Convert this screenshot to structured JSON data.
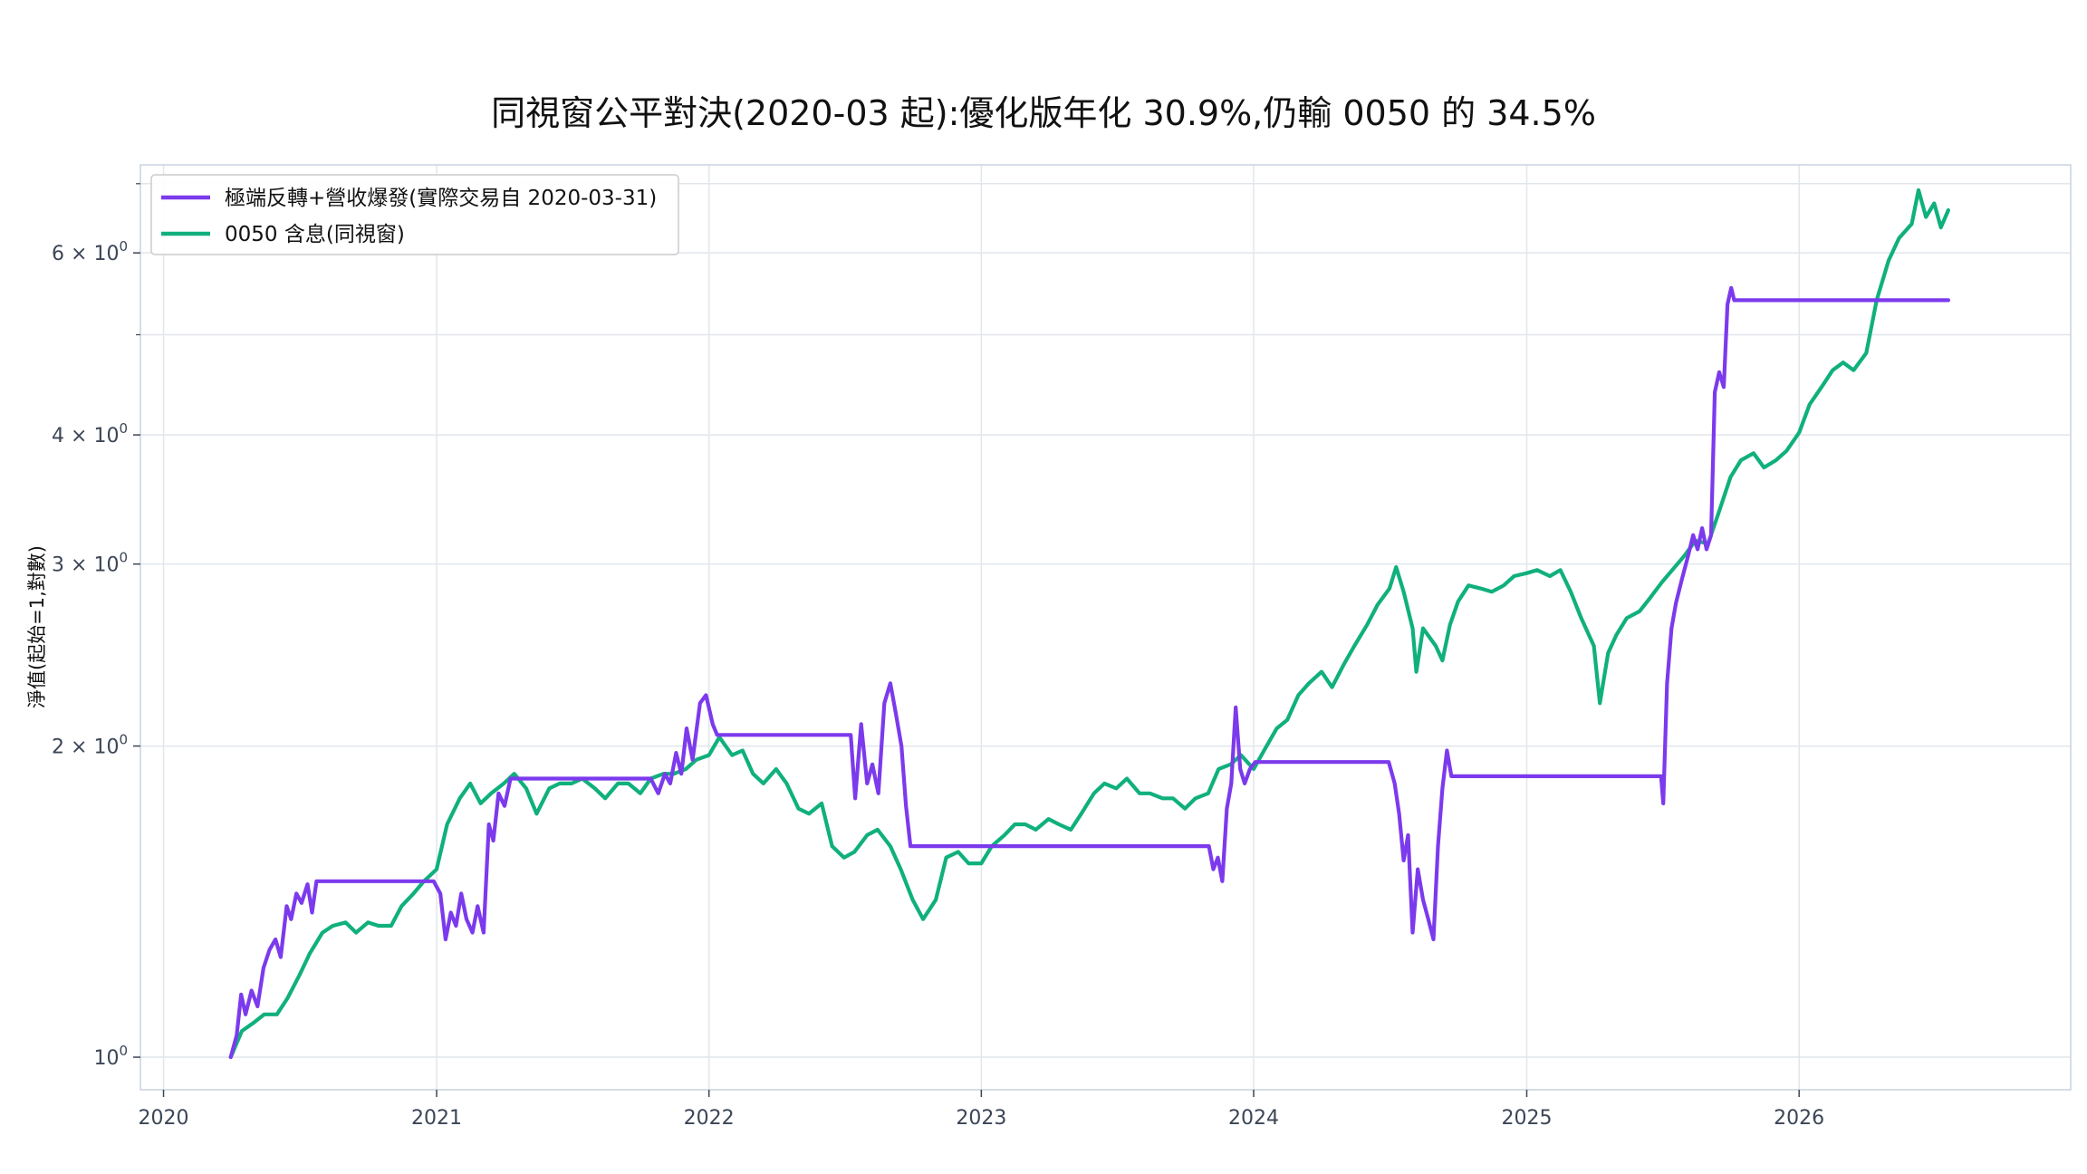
{
  "chart_data": {
    "type": "line",
    "title": "同視窗公平對決(2020-03 起):優化版年化 30.9%,仍輸 0050 的 34.5%",
    "ylabel": "淨值(起始=1,對數)",
    "xlabel": "",
    "yscale": "log",
    "xlim": [
      "2019-12-01",
      "2026-12-31"
    ],
    "ylim": [
      0.93,
      7.3
    ],
    "grid": true,
    "legend": "top-left",
    "x_ticks": [
      {
        "date": "2020-01-01",
        "label": "2020"
      },
      {
        "date": "2021-01-01",
        "label": "2021"
      },
      {
        "date": "2022-01-01",
        "label": "2022"
      },
      {
        "date": "2023-01-01",
        "label": "2023"
      },
      {
        "date": "2024-01-01",
        "label": "2024"
      },
      {
        "date": "2025-01-01",
        "label": "2025"
      },
      {
        "date": "2026-01-01",
        "label": "2026"
      }
    ],
    "y_ticks": [
      {
        "value": 1,
        "base": "10",
        "exp": "0",
        "mult": ""
      },
      {
        "value": 2,
        "base": "10",
        "exp": "0",
        "mult": "2 × "
      },
      {
        "value": 3,
        "base": "10",
        "exp": "0",
        "mult": "3 × "
      },
      {
        "value": 4,
        "base": "10",
        "exp": "0",
        "mult": "4 × "
      },
      {
        "value": 6,
        "base": "10",
        "exp": "0",
        "mult": "6 × "
      }
    ],
    "y_minor_ticks": [
      5,
      7
    ],
    "series": [
      {
        "name": "極端反轉+營收爆發(實際交易自 2020-03-31)",
        "color": "#7c3aed",
        "points": [
          [
            "2020-03-31",
            1.0
          ],
          [
            "2020-04-08",
            1.05
          ],
          [
            "2020-04-14",
            1.15
          ],
          [
            "2020-04-20",
            1.1
          ],
          [
            "2020-04-28",
            1.16
          ],
          [
            "2020-05-06",
            1.12
          ],
          [
            "2020-05-14",
            1.22
          ],
          [
            "2020-05-22",
            1.27
          ],
          [
            "2020-05-30",
            1.3
          ],
          [
            "2020-06-06",
            1.25
          ],
          [
            "2020-06-14",
            1.4
          ],
          [
            "2020-06-20",
            1.36
          ],
          [
            "2020-06-27",
            1.44
          ],
          [
            "2020-07-04",
            1.41
          ],
          [
            "2020-07-12",
            1.47
          ],
          [
            "2020-07-18",
            1.38
          ],
          [
            "2020-07-24",
            1.48
          ],
          [
            "2020-12-28",
            1.48
          ],
          [
            "2021-01-06",
            1.44
          ],
          [
            "2021-01-13",
            1.3
          ],
          [
            "2021-01-20",
            1.38
          ],
          [
            "2021-01-27",
            1.34
          ],
          [
            "2021-02-03",
            1.44
          ],
          [
            "2021-02-10",
            1.36
          ],
          [
            "2021-02-18",
            1.32
          ],
          [
            "2021-02-25",
            1.4
          ],
          [
            "2021-03-05",
            1.32
          ],
          [
            "2021-03-12",
            1.68
          ],
          [
            "2021-03-18",
            1.62
          ],
          [
            "2021-03-25",
            1.8
          ],
          [
            "2021-04-02",
            1.75
          ],
          [
            "2021-04-10",
            1.86
          ],
          [
            "2021-10-15",
            1.86
          ],
          [
            "2021-10-25",
            1.8
          ],
          [
            "2021-11-03",
            1.88
          ],
          [
            "2021-11-10",
            1.84
          ],
          [
            "2021-11-18",
            1.97
          ],
          [
            "2021-11-25",
            1.88
          ],
          [
            "2021-12-02",
            2.08
          ],
          [
            "2021-12-10",
            1.94
          ],
          [
            "2021-12-20",
            2.2
          ],
          [
            "2021-12-28",
            2.24
          ],
          [
            "2022-01-06",
            2.1
          ],
          [
            "2022-01-12",
            2.05
          ],
          [
            "2022-07-10",
            2.05
          ],
          [
            "2022-07-16",
            1.78
          ],
          [
            "2022-07-24",
            2.1
          ],
          [
            "2022-08-01",
            1.84
          ],
          [
            "2022-08-08",
            1.92
          ],
          [
            "2022-08-16",
            1.8
          ],
          [
            "2022-08-24",
            2.2
          ],
          [
            "2022-09-01",
            2.3
          ],
          [
            "2022-09-08",
            2.16
          ],
          [
            "2022-09-16",
            2.0
          ],
          [
            "2022-09-22",
            1.75
          ],
          [
            "2022-09-28",
            1.6
          ],
          [
            "2023-11-02",
            1.6
          ],
          [
            "2023-11-08",
            1.52
          ],
          [
            "2023-11-14",
            1.56
          ],
          [
            "2023-11-20",
            1.48
          ],
          [
            "2023-11-26",
            1.74
          ],
          [
            "2023-12-02",
            1.84
          ],
          [
            "2023-12-08",
            2.18
          ],
          [
            "2023-12-14",
            1.9
          ],
          [
            "2023-12-20",
            1.84
          ],
          [
            "2023-12-27",
            1.9
          ],
          [
            "2024-01-03",
            1.93
          ],
          [
            "2024-06-30",
            1.93
          ],
          [
            "2024-07-08",
            1.84
          ],
          [
            "2024-07-14",
            1.72
          ],
          [
            "2024-07-20",
            1.55
          ],
          [
            "2024-07-26",
            1.64
          ],
          [
            "2024-08-01",
            1.32
          ],
          [
            "2024-08-08",
            1.52
          ],
          [
            "2024-08-15",
            1.42
          ],
          [
            "2024-08-22",
            1.36
          ],
          [
            "2024-08-29",
            1.3
          ],
          [
            "2024-09-04",
            1.6
          ],
          [
            "2024-09-10",
            1.82
          ],
          [
            "2024-09-16",
            1.98
          ],
          [
            "2024-09-22",
            1.87
          ],
          [
            "2025-06-30",
            1.87
          ],
          [
            "2025-07-03",
            1.76
          ],
          [
            "2025-07-08",
            2.3
          ],
          [
            "2025-07-14",
            2.6
          ],
          [
            "2025-07-20",
            2.75
          ],
          [
            "2025-07-28",
            2.9
          ],
          [
            "2025-08-05",
            3.05
          ],
          [
            "2025-08-12",
            3.2
          ],
          [
            "2025-08-18",
            3.1
          ],
          [
            "2025-08-24",
            3.25
          ],
          [
            "2025-08-30",
            3.1
          ],
          [
            "2025-09-05",
            3.2
          ],
          [
            "2025-09-10",
            4.4
          ],
          [
            "2025-09-16",
            4.6
          ],
          [
            "2025-09-22",
            4.45
          ],
          [
            "2025-09-27",
            5.35
          ],
          [
            "2025-10-02",
            5.55
          ],
          [
            "2025-10-06",
            5.4
          ],
          [
            "2026-07-20",
            5.4
          ]
        ]
      },
      {
        "name": "0050 含息(同視窗)",
        "color": "#10b07d",
        "points": [
          [
            "2020-03-31",
            1.0
          ],
          [
            "2020-04-15",
            1.06
          ],
          [
            "2020-05-01",
            1.08
          ],
          [
            "2020-05-15",
            1.1
          ],
          [
            "2020-06-01",
            1.1
          ],
          [
            "2020-06-15",
            1.14
          ],
          [
            "2020-07-01",
            1.2
          ],
          [
            "2020-07-15",
            1.26
          ],
          [
            "2020-08-01",
            1.32
          ],
          [
            "2020-08-15",
            1.34
          ],
          [
            "2020-09-01",
            1.35
          ],
          [
            "2020-09-15",
            1.32
          ],
          [
            "2020-10-01",
            1.35
          ],
          [
            "2020-10-15",
            1.34
          ],
          [
            "2020-11-01",
            1.34
          ],
          [
            "2020-11-15",
            1.4
          ],
          [
            "2020-12-01",
            1.44
          ],
          [
            "2020-12-15",
            1.48
          ],
          [
            "2021-01-01",
            1.52
          ],
          [
            "2021-01-15",
            1.68
          ],
          [
            "2021-02-01",
            1.78
          ],
          [
            "2021-02-15",
            1.84
          ],
          [
            "2021-03-01",
            1.76
          ],
          [
            "2021-03-15",
            1.8
          ],
          [
            "2021-04-01",
            1.84
          ],
          [
            "2021-04-15",
            1.88
          ],
          [
            "2021-05-01",
            1.82
          ],
          [
            "2021-05-15",
            1.72
          ],
          [
            "2021-06-01",
            1.82
          ],
          [
            "2021-06-15",
            1.84
          ],
          [
            "2021-07-01",
            1.84
          ],
          [
            "2021-07-15",
            1.86
          ],
          [
            "2021-08-01",
            1.82
          ],
          [
            "2021-08-15",
            1.78
          ],
          [
            "2021-09-01",
            1.84
          ],
          [
            "2021-09-15",
            1.84
          ],
          [
            "2021-10-01",
            1.8
          ],
          [
            "2021-10-15",
            1.86
          ],
          [
            "2021-11-01",
            1.88
          ],
          [
            "2021-11-15",
            1.88
          ],
          [
            "2021-12-01",
            1.9
          ],
          [
            "2021-12-15",
            1.94
          ],
          [
            "2022-01-01",
            1.96
          ],
          [
            "2022-01-15",
            2.04
          ],
          [
            "2022-02-01",
            1.96
          ],
          [
            "2022-02-15",
            1.98
          ],
          [
            "2022-03-01",
            1.88
          ],
          [
            "2022-03-15",
            1.84
          ],
          [
            "2022-04-01",
            1.9
          ],
          [
            "2022-04-15",
            1.84
          ],
          [
            "2022-05-01",
            1.74
          ],
          [
            "2022-05-15",
            1.72
          ],
          [
            "2022-06-01",
            1.76
          ],
          [
            "2022-06-15",
            1.6
          ],
          [
            "2022-07-01",
            1.56
          ],
          [
            "2022-07-15",
            1.58
          ],
          [
            "2022-08-01",
            1.64
          ],
          [
            "2022-08-15",
            1.66
          ],
          [
            "2022-09-01",
            1.6
          ],
          [
            "2022-09-15",
            1.52
          ],
          [
            "2022-10-01",
            1.42
          ],
          [
            "2022-10-15",
            1.36
          ],
          [
            "2022-11-01",
            1.42
          ],
          [
            "2022-11-15",
            1.56
          ],
          [
            "2022-12-01",
            1.58
          ],
          [
            "2022-12-15",
            1.54
          ],
          [
            "2023-01-01",
            1.54
          ],
          [
            "2023-01-15",
            1.6
          ],
          [
            "2023-02-01",
            1.64
          ],
          [
            "2023-02-15",
            1.68
          ],
          [
            "2023-03-01",
            1.68
          ],
          [
            "2023-03-15",
            1.66
          ],
          [
            "2023-04-01",
            1.7
          ],
          [
            "2023-04-15",
            1.68
          ],
          [
            "2023-05-01",
            1.66
          ],
          [
            "2023-05-15",
            1.72
          ],
          [
            "2023-06-01",
            1.8
          ],
          [
            "2023-06-15",
            1.84
          ],
          [
            "2023-07-01",
            1.82
          ],
          [
            "2023-07-15",
            1.86
          ],
          [
            "2023-08-01",
            1.8
          ],
          [
            "2023-08-15",
            1.8
          ],
          [
            "2023-09-01",
            1.78
          ],
          [
            "2023-09-15",
            1.78
          ],
          [
            "2023-10-01",
            1.74
          ],
          [
            "2023-10-15",
            1.78
          ],
          [
            "2023-11-01",
            1.8
          ],
          [
            "2023-11-15",
            1.9
          ],
          [
            "2023-12-01",
            1.92
          ],
          [
            "2023-12-15",
            1.96
          ],
          [
            "2024-01-01",
            1.9
          ],
          [
            "2024-01-15",
            1.98
          ],
          [
            "2024-02-01",
            2.08
          ],
          [
            "2024-02-15",
            2.12
          ],
          [
            "2024-03-01",
            2.24
          ],
          [
            "2024-03-15",
            2.3
          ],
          [
            "2024-04-01",
            2.36
          ],
          [
            "2024-04-15",
            2.28
          ],
          [
            "2024-05-01",
            2.4
          ],
          [
            "2024-05-15",
            2.5
          ],
          [
            "2024-06-01",
            2.62
          ],
          [
            "2024-06-15",
            2.74
          ],
          [
            "2024-07-01",
            2.84
          ],
          [
            "2024-07-10",
            2.98
          ],
          [
            "2024-07-20",
            2.82
          ],
          [
            "2024-08-01",
            2.6
          ],
          [
            "2024-08-06",
            2.36
          ],
          [
            "2024-08-15",
            2.6
          ],
          [
            "2024-09-01",
            2.5
          ],
          [
            "2024-09-10",
            2.42
          ],
          [
            "2024-09-20",
            2.62
          ],
          [
            "2024-10-01",
            2.76
          ],
          [
            "2024-10-15",
            2.86
          ],
          [
            "2024-11-01",
            2.84
          ],
          [
            "2024-11-15",
            2.82
          ],
          [
            "2024-12-01",
            2.86
          ],
          [
            "2024-12-15",
            2.92
          ],
          [
            "2025-01-01",
            2.94
          ],
          [
            "2025-01-15",
            2.96
          ],
          [
            "2025-02-01",
            2.92
          ],
          [
            "2025-02-15",
            2.96
          ],
          [
            "2025-03-01",
            2.82
          ],
          [
            "2025-03-15",
            2.66
          ],
          [
            "2025-04-01",
            2.5
          ],
          [
            "2025-04-09",
            2.2
          ],
          [
            "2025-04-20",
            2.46
          ],
          [
            "2025-05-01",
            2.56
          ],
          [
            "2025-05-15",
            2.66
          ],
          [
            "2025-06-01",
            2.7
          ],
          [
            "2025-06-15",
            2.78
          ],
          [
            "2025-07-01",
            2.88
          ],
          [
            "2025-07-15",
            2.96
          ],
          [
            "2025-08-01",
            3.06
          ],
          [
            "2025-08-15",
            3.16
          ],
          [
            "2025-09-01",
            3.14
          ],
          [
            "2025-09-15",
            3.36
          ],
          [
            "2025-10-01",
            3.64
          ],
          [
            "2025-10-15",
            3.78
          ],
          [
            "2025-11-01",
            3.84
          ],
          [
            "2025-11-15",
            3.72
          ],
          [
            "2025-12-01",
            3.78
          ],
          [
            "2025-12-15",
            3.86
          ],
          [
            "2026-01-01",
            4.02
          ],
          [
            "2026-01-15",
            4.28
          ],
          [
            "2026-02-01",
            4.46
          ],
          [
            "2026-02-15",
            4.62
          ],
          [
            "2026-03-01",
            4.7
          ],
          [
            "2026-03-15",
            4.62
          ],
          [
            "2026-04-01",
            4.8
          ],
          [
            "2026-04-15",
            5.4
          ],
          [
            "2026-05-01",
            5.9
          ],
          [
            "2026-05-15",
            6.2
          ],
          [
            "2026-06-01",
            6.4
          ],
          [
            "2026-06-10",
            6.9
          ],
          [
            "2026-06-20",
            6.5
          ],
          [
            "2026-07-01",
            6.7
          ],
          [
            "2026-07-10",
            6.35
          ],
          [
            "2026-07-20",
            6.6
          ]
        ]
      }
    ]
  }
}
